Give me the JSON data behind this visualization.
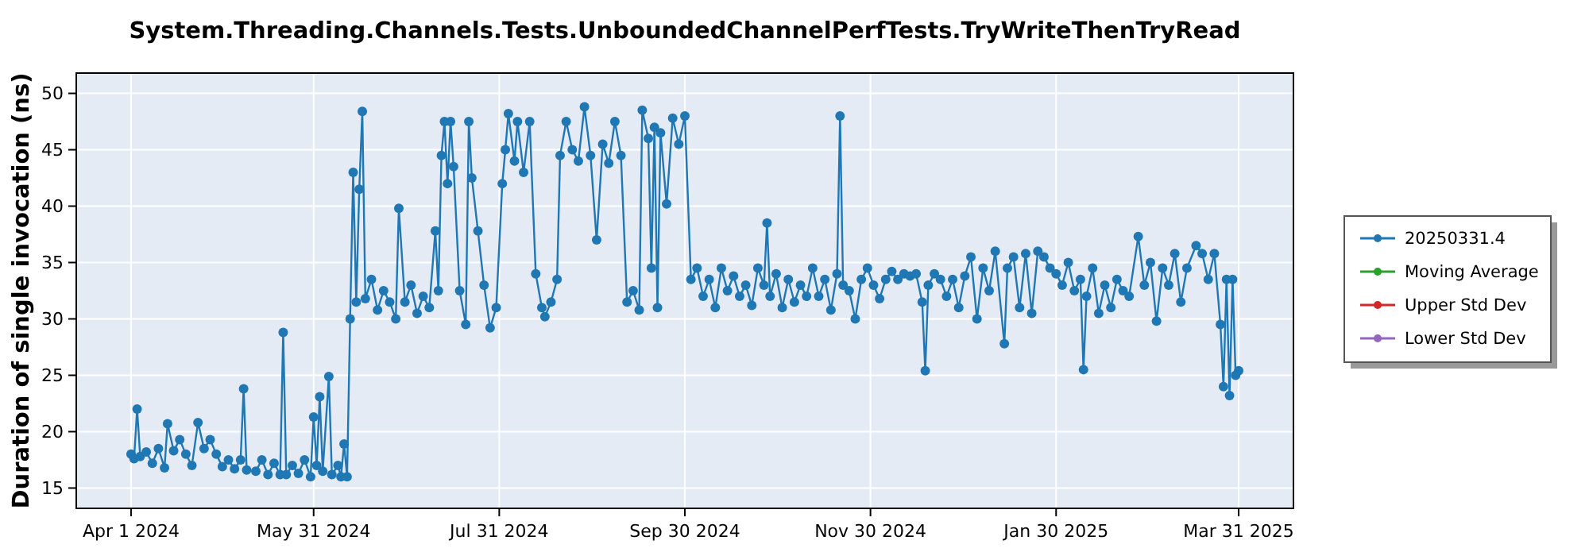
{
  "chart_data": {
    "type": "line",
    "title": "System.Threading.Channels.Tests.UnboundedChannelPerfTests.TryWriteThenTryRead",
    "ylabel": "Duration of single invocation (ns)",
    "xlim": [
      "2024-03-14",
      "2025-04-18"
    ],
    "xticks": [
      {
        "value": "2024-04-01",
        "label": "Apr 1 2024"
      },
      {
        "value": "2024-05-31",
        "label": "May 31 2024"
      },
      {
        "value": "2024-07-31",
        "label": "Jul 31 2024"
      },
      {
        "value": "2024-09-30",
        "label": "Sep 30 2024"
      },
      {
        "value": "2024-11-30",
        "label": "Nov 30 2024"
      },
      {
        "value": "2025-01-30",
        "label": "Jan 30 2025"
      },
      {
        "value": "2025-03-31",
        "label": "Mar 31 2025"
      }
    ],
    "ylim": [
      13.2,
      51.8
    ],
    "yticks": [
      15,
      20,
      25,
      30,
      35,
      40,
      45,
      50
    ],
    "grid": true,
    "legend": "right",
    "marker": "circle",
    "line_style": "solid",
    "series": [
      {
        "name": "20250331.4",
        "color": "#1f77b4",
        "x": [
          "2024-04-01",
          "2024-04-02",
          "2024-04-03",
          "2024-04-04",
          "2024-04-06",
          "2024-04-08",
          "2024-04-10",
          "2024-04-12",
          "2024-04-13",
          "2024-04-15",
          "2024-04-17",
          "2024-04-19",
          "2024-04-21",
          "2024-04-23",
          "2024-04-25",
          "2024-04-27",
          "2024-04-29",
          "2024-05-01",
          "2024-05-03",
          "2024-05-05",
          "2024-05-07",
          "2024-05-08",
          "2024-05-09",
          "2024-05-12",
          "2024-05-14",
          "2024-05-16",
          "2024-05-18",
          "2024-05-20",
          "2024-05-21",
          "2024-05-22",
          "2024-05-24",
          "2024-05-26",
          "2024-05-28",
          "2024-05-30",
          "2024-05-31",
          "2024-06-01",
          "2024-06-02",
          "2024-06-03",
          "2024-06-05",
          "2024-06-06",
          "2024-06-08",
          "2024-06-09",
          "2024-06-10",
          "2024-06-11",
          "2024-06-12",
          "2024-06-13",
          "2024-06-14",
          "2024-06-15",
          "2024-06-16",
          "2024-06-17",
          "2024-06-19",
          "2024-06-21",
          "2024-06-23",
          "2024-06-25",
          "2024-06-27",
          "2024-06-28",
          "2024-06-30",
          "2024-07-02",
          "2024-07-04",
          "2024-07-06",
          "2024-07-08",
          "2024-07-10",
          "2024-07-11",
          "2024-07-12",
          "2024-07-13",
          "2024-07-14",
          "2024-07-15",
          "2024-07-16",
          "2024-07-18",
          "2024-07-20",
          "2024-07-21",
          "2024-07-22",
          "2024-07-24",
          "2024-07-26",
          "2024-07-28",
          "2024-07-30",
          "2024-08-01",
          "2024-08-02",
          "2024-08-03",
          "2024-08-05",
          "2024-08-06",
          "2024-08-08",
          "2024-08-10",
          "2024-08-12",
          "2024-08-14",
          "2024-08-15",
          "2024-08-17",
          "2024-08-19",
          "2024-08-20",
          "2024-08-22",
          "2024-08-24",
          "2024-08-26",
          "2024-08-28",
          "2024-08-30",
          "2024-09-01",
          "2024-09-03",
          "2024-09-05",
          "2024-09-07",
          "2024-09-09",
          "2024-09-11",
          "2024-09-13",
          "2024-09-15",
          "2024-09-16",
          "2024-09-18",
          "2024-09-19",
          "2024-09-20",
          "2024-09-21",
          "2024-09-22",
          "2024-09-24",
          "2024-09-26",
          "2024-09-28",
          "2024-09-30",
          "2024-10-02",
          "2024-10-04",
          "2024-10-06",
          "2024-10-08",
          "2024-10-10",
          "2024-10-12",
          "2024-10-14",
          "2024-10-16",
          "2024-10-18",
          "2024-10-20",
          "2024-10-22",
          "2024-10-24",
          "2024-10-26",
          "2024-10-27",
          "2024-10-28",
          "2024-10-30",
          "2024-11-01",
          "2024-11-03",
          "2024-11-05",
          "2024-11-07",
          "2024-11-09",
          "2024-11-11",
          "2024-11-13",
          "2024-11-15",
          "2024-11-17",
          "2024-11-19",
          "2024-11-20",
          "2024-11-21",
          "2024-11-23",
          "2024-11-25",
          "2024-11-27",
          "2024-11-29",
          "2024-12-01",
          "2024-12-03",
          "2024-12-05",
          "2024-12-07",
          "2024-12-09",
          "2024-12-11",
          "2024-12-13",
          "2024-12-15",
          "2024-12-17",
          "2024-12-18",
          "2024-12-19",
          "2024-12-21",
          "2024-12-23",
          "2024-12-25",
          "2024-12-27",
          "2024-12-29",
          "2024-12-31",
          "2025-01-02",
          "2025-01-04",
          "2025-01-06",
          "2025-01-08",
          "2025-01-10",
          "2025-01-13",
          "2025-01-14",
          "2025-01-16",
          "2025-01-18",
          "2025-01-20",
          "2025-01-22",
          "2025-01-24",
          "2025-01-26",
          "2025-01-28",
          "2025-01-30",
          "2025-02-01",
          "2025-02-03",
          "2025-02-05",
          "2025-02-07",
          "2025-02-08",
          "2025-02-09",
          "2025-02-11",
          "2025-02-13",
          "2025-02-15",
          "2025-02-17",
          "2025-02-19",
          "2025-02-21",
          "2025-02-23",
          "2025-02-26",
          "2025-02-28",
          "2025-03-02",
          "2025-03-04",
          "2025-03-06",
          "2025-03-08",
          "2025-03-10",
          "2025-03-12",
          "2025-03-14",
          "2025-03-17",
          "2025-03-19",
          "2025-03-21",
          "2025-03-23",
          "2025-03-25",
          "2025-03-26",
          "2025-03-27",
          "2025-03-28",
          "2025-03-29",
          "2025-03-30",
          "2025-03-31"
        ],
        "values": [
          18.0,
          17.6,
          22.0,
          17.8,
          18.2,
          17.2,
          18.5,
          16.8,
          20.7,
          18.3,
          19.3,
          18.0,
          17.0,
          20.8,
          18.5,
          19.3,
          18.0,
          16.9,
          17.5,
          16.7,
          17.5,
          23.8,
          16.6,
          16.5,
          17.5,
          16.2,
          17.2,
          16.2,
          28.8,
          16.2,
          17.0,
          16.3,
          17.5,
          16.0,
          21.3,
          17.0,
          23.1,
          16.5,
          24.9,
          16.2,
          17.0,
          16.0,
          18.9,
          16.0,
          30.0,
          43.0,
          31.5,
          41.5,
          48.4,
          31.8,
          33.5,
          30.8,
          32.5,
          31.5,
          30.0,
          39.8,
          31.5,
          33.0,
          30.5,
          32.0,
          31.0,
          37.8,
          32.5,
          44.5,
          47.5,
          42.0,
          47.5,
          43.5,
          32.5,
          29.5,
          47.5,
          42.5,
          37.8,
          33.0,
          29.2,
          31.0,
          42.0,
          45.0,
          48.2,
          44.0,
          47.5,
          43.0,
          47.5,
          34.0,
          31.0,
          30.2,
          31.5,
          33.5,
          44.5,
          47.5,
          45.0,
          44.0,
          48.8,
          44.5,
          37.0,
          45.5,
          43.8,
          47.5,
          44.5,
          31.5,
          32.5,
          30.8,
          48.5,
          46.0,
          34.5,
          47.0,
          31.0,
          46.5,
          40.2,
          47.8,
          45.5,
          48.0,
          33.5,
          34.5,
          32.0,
          33.5,
          31.0,
          34.5,
          32.5,
          33.8,
          32.0,
          33.0,
          31.2,
          34.5,
          33.0,
          38.5,
          32.0,
          34.0,
          31.0,
          33.5,
          31.5,
          33.0,
          32.0,
          34.5,
          32.0,
          33.5,
          30.8,
          34.0,
          48.0,
          33.0,
          32.5,
          30.0,
          33.5,
          34.5,
          33.0,
          31.8,
          33.5,
          34.2,
          33.5,
          34.0,
          33.8,
          34.0,
          31.5,
          25.4,
          33.0,
          34.0,
          33.5,
          32.0,
          33.5,
          31.0,
          33.8,
          35.5,
          30.0,
          34.5,
          32.5,
          36.0,
          27.8,
          34.5,
          35.5,
          31.0,
          35.8,
          30.5,
          36.0,
          35.5,
          34.5,
          34.0,
          33.0,
          35.0,
          32.5,
          33.5,
          25.5,
          32.0,
          34.5,
          30.5,
          33.0,
          31.0,
          33.5,
          32.5,
          32.0,
          37.3,
          33.0,
          35.0,
          29.8,
          34.5,
          33.0,
          35.8,
          31.5,
          34.5,
          36.5,
          35.8,
          33.5,
          35.8,
          29.5,
          24.0,
          33.5,
          23.2,
          33.5,
          25.0,
          25.4
        ]
      },
      {
        "name": "Moving Average",
        "color": "#2ca02c"
      },
      {
        "name": "Upper Std Dev",
        "color": "#d62728"
      },
      {
        "name": "Lower Std Dev",
        "color": "#9467bd"
      }
    ]
  }
}
